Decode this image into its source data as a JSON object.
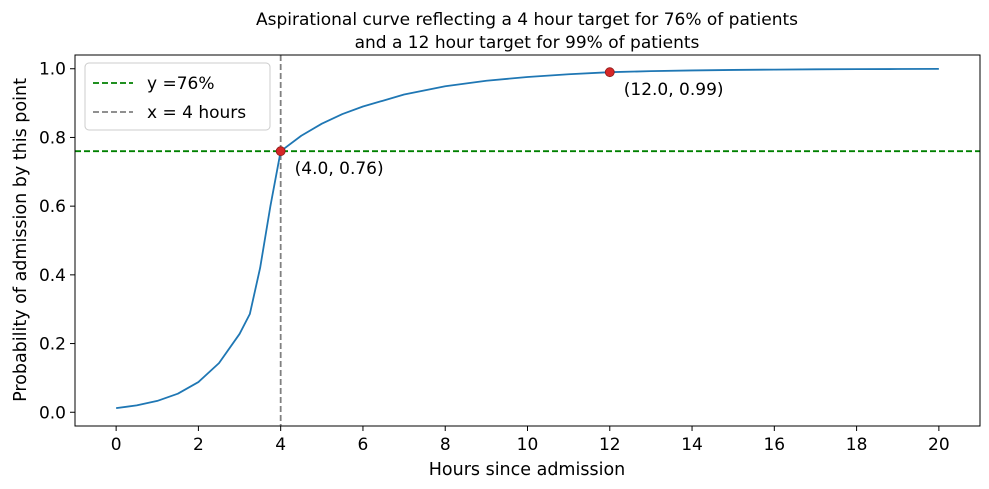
{
  "chart_data": {
    "type": "line",
    "title_lines": [
      "Aspirational curve reflecting a 4 hour target for 76% of patients",
      "and a 12 hour target for 99% of patients"
    ],
    "xlabel": "Hours since admission",
    "ylabel": "Probability of admission by this point",
    "xlim": [
      -1,
      21
    ],
    "ylim": [
      -0.04,
      1.04
    ],
    "xticks": [
      0,
      2,
      4,
      6,
      8,
      10,
      12,
      14,
      16,
      18,
      20
    ],
    "yticks": [
      0.0,
      0.2,
      0.4,
      0.6,
      0.8,
      1.0
    ],
    "ytick_labels": [
      "0.0",
      "0.2",
      "0.4",
      "0.6",
      "0.8",
      "1.0"
    ],
    "grid": false,
    "legend_position": "top-left",
    "series": [
      {
        "color": "#1f77b4",
        "x": [
          0,
          0.5,
          1,
          1.5,
          2,
          2.5,
          3,
          3.25,
          3.5,
          3.75,
          4,
          4.5,
          5,
          5.5,
          6,
          7,
          8,
          9,
          10,
          11,
          12,
          13,
          14,
          15,
          16,
          17,
          18,
          19,
          20
        ],
        "y": [
          0.012,
          0.02,
          0.033,
          0.054,
          0.088,
          0.143,
          0.228,
          0.286,
          0.42,
          0.6,
          0.76,
          0.805,
          0.84,
          0.868,
          0.89,
          0.925,
          0.949,
          0.965,
          0.976,
          0.984,
          0.99,
          0.993,
          0.995,
          0.9965,
          0.9975,
          0.9983,
          0.9988,
          0.9992,
          0.9995
        ]
      }
    ],
    "reference_lines": [
      {
        "orientation": "horizontal",
        "value": 0.76,
        "color": "#008000",
        "style": "dashed",
        "legend": "y =76%"
      },
      {
        "orientation": "vertical",
        "value": 4,
        "color": "#808080",
        "style": "dashed",
        "legend": "x = 4 hours"
      }
    ],
    "highlight_points": [
      {
        "x": 4.0,
        "y": 0.76,
        "label": "(4.0, 0.76)",
        "color": "#d62728"
      },
      {
        "x": 12.0,
        "y": 0.99,
        "label": "(12.0, 0.99)",
        "color": "#d62728"
      }
    ]
  }
}
